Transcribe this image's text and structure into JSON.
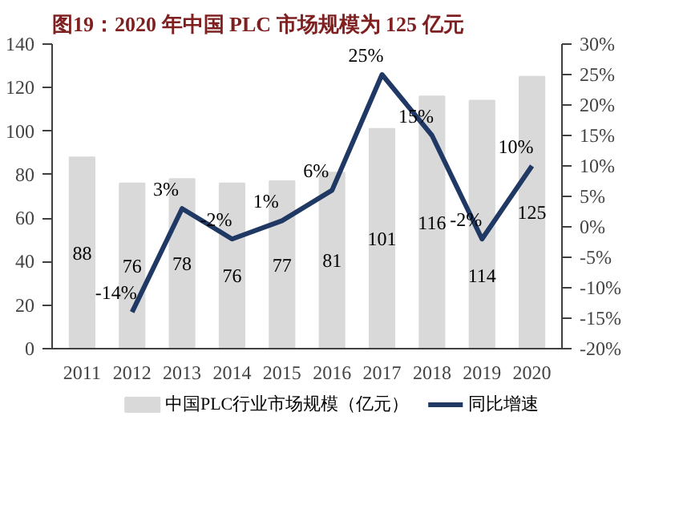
{
  "chart_data": {
    "type": "bar",
    "title": "图19：2020 年中国 PLC 市场规模为 125 亿元",
    "categories": [
      "2011",
      "2012",
      "2013",
      "2014",
      "2015",
      "2016",
      "2017",
      "2018",
      "2019",
      "2020"
    ],
    "series": [
      {
        "name": "中国PLC行业市场规模（亿元）",
        "color": "#d9d9d9",
        "values": [
          88,
          76,
          78,
          76,
          77,
          81,
          101,
          116,
          114,
          125
        ]
      },
      {
        "name": "同比增速",
        "color": "#1f3864",
        "type": "line",
        "axis": "y2",
        "values": [
          null,
          -14,
          3,
          -2,
          1,
          6,
          25,
          15,
          -2,
          10
        ],
        "value_labels": [
          null,
          "-14%",
          "3%",
          "-2%",
          "1%",
          "6%",
          "25%",
          "15%",
          "-2%",
          "10%"
        ]
      }
    ],
    "ylim": [
      0,
      140
    ],
    "yticks": [
      0,
      20,
      40,
      60,
      80,
      100,
      120,
      140
    ],
    "y2lim": [
      -20,
      30
    ],
    "y2ticks": [
      {
        "value": -20,
        "label": "-20%"
      },
      {
        "value": -15,
        "label": "-15%"
      },
      {
        "value": -10,
        "label": "-10%"
      },
      {
        "value": -5,
        "label": "-5%"
      },
      {
        "value": 0,
        "label": "0%"
      },
      {
        "value": 5,
        "label": "5%"
      },
      {
        "value": 10,
        "label": "10%"
      },
      {
        "value": 15,
        "label": "15%"
      },
      {
        "value": 20,
        "label": "20%"
      },
      {
        "value": 25,
        "label": "25%"
      },
      {
        "value": 30,
        "label": "30%"
      }
    ],
    "data_labels": true,
    "grid": false,
    "legend": "bottom"
  }
}
